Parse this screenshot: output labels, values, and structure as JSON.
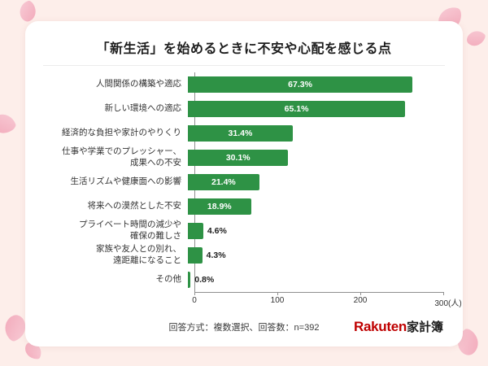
{
  "chart_data": {
    "type": "bar",
    "orientation": "horizontal",
    "title": "「新生活」を始めるときに不安や心配を感じる点",
    "value_unit": "%",
    "n_respondents": 392,
    "x_axis": {
      "min": 0,
      "max": 300,
      "ticks": [
        0,
        100,
        200,
        300
      ],
      "tick_labels": [
        "0",
        "100",
        "200",
        "300(人)"
      ],
      "unit": "人"
    },
    "rows": [
      {
        "label": "人間関係の構築や適応",
        "pct": 67.3
      },
      {
        "label": "新しい環境への適応",
        "pct": 65.1
      },
      {
        "label": "経済的な負担や家計のやりくり",
        "pct": 31.4
      },
      {
        "label": "仕事や学業でのプレッシャー、\n成果への不安",
        "pct": 30.1
      },
      {
        "label": "生活リズムや健康面への影響",
        "pct": 21.4
      },
      {
        "label": "将来への漠然とした不安",
        "pct": 18.9
      },
      {
        "label": "プライベート時間の減少や\n確保の難しさ",
        "pct": 4.6
      },
      {
        "label": "家族や友人との別れ、\n遠距離になること",
        "pct": 4.3
      },
      {
        "label": "その他",
        "pct": 0.8
      }
    ],
    "legend": null,
    "grid": false
  },
  "footer": {
    "note": "回答方式：複数選択、回答数：n=392"
  },
  "brand": {
    "red": "Rakuten",
    "black": "家計簿"
  },
  "colors": {
    "bar": "#2e9245",
    "background": "#fdeeea",
    "card": "#ffffff",
    "petal": "#f2a9ba",
    "brand_red": "#bf0000"
  }
}
